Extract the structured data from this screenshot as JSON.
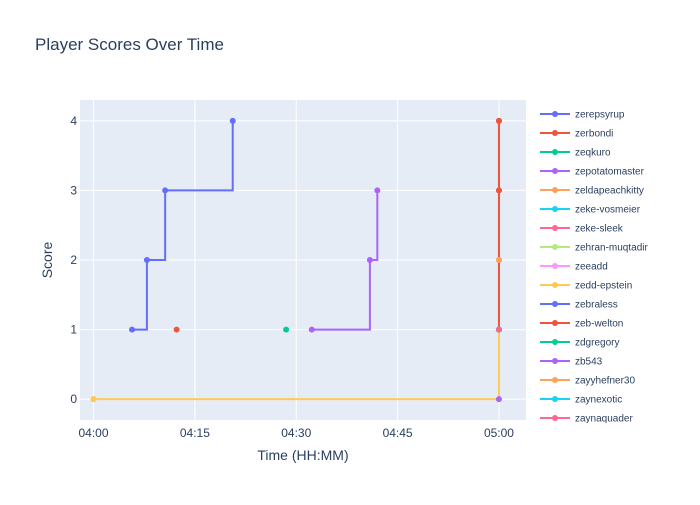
{
  "chart_data": {
    "type": "line",
    "title": "Player Scores Over Time",
    "xlabel": "Time (HH:MM)",
    "ylabel": "Score",
    "line_shape": "step",
    "x_unit": "minutes since 04:00 (clock time HH:MM)",
    "xlim": [
      -2,
      64
    ],
    "ylim": [
      -0.3,
      4.3
    ],
    "x_ticks": [
      {
        "value": 0,
        "label": "04:00"
      },
      {
        "value": 15,
        "label": "04:15"
      },
      {
        "value": 30,
        "label": "04:30"
      },
      {
        "value": 45,
        "label": "04:45"
      },
      {
        "value": 60,
        "label": "05:00"
      }
    ],
    "y_ticks": [
      0,
      1,
      2,
      3,
      4
    ],
    "grid": true,
    "legend_position": "right",
    "background": "#e5ecf6",
    "series": [
      {
        "name": "zerepsyrup",
        "color": "#636efa",
        "points": [
          [
            5.7,
            1
          ],
          [
            7.9,
            2
          ],
          [
            10.6,
            3
          ],
          [
            20.6,
            4
          ]
        ]
      },
      {
        "name": "zerbondi",
        "color": "#ef553b",
        "points": [
          [
            12.3,
            1
          ]
        ]
      },
      {
        "name": "zeqkuro",
        "color": "#00cc96",
        "points": [
          [
            28.5,
            1
          ]
        ]
      },
      {
        "name": "zepotatomaster",
        "color": "#ab63fa",
        "points": [
          [
            32.3,
            1
          ],
          [
            40.9,
            2
          ],
          [
            42.0,
            3
          ]
        ]
      },
      {
        "name": "zeldapeachkitty",
        "color": "#ffa15a",
        "points": [
          [
            0,
            0
          ]
        ]
      },
      {
        "name": "zeke-vosmeier",
        "color": "#19d3f3",
        "points": [
          [
            60,
            1
          ]
        ]
      },
      {
        "name": "zeke-sleek",
        "color": "#ff6692",
        "points": [
          [
            60,
            1
          ]
        ]
      },
      {
        "name": "zehran-muqtadir",
        "color": "#b6e880",
        "points": [
          [
            60,
            2
          ]
        ]
      },
      {
        "name": "zeeadd",
        "color": "#ff97ff",
        "points": [
          [
            60,
            2
          ]
        ]
      },
      {
        "name": "zedd-epstein",
        "color": "#fecb52",
        "points": [
          [
            0,
            0
          ],
          [
            60,
            2
          ]
        ]
      },
      {
        "name": "zebraless",
        "color": "#636efa",
        "points": [
          [
            60,
            1
          ],
          [
            60,
            3
          ],
          [
            60,
            4
          ]
        ]
      },
      {
        "name": "zeb-welton",
        "color": "#ef553b",
        "points": [
          [
            60,
            1
          ],
          [
            60,
            3
          ],
          [
            60,
            4
          ]
        ]
      },
      {
        "name": "zdgregory",
        "color": "#00cc96",
        "points": [
          [
            60,
            1
          ]
        ]
      },
      {
        "name": "zb543",
        "color": "#ab63fa",
        "points": [
          [
            60,
            0
          ]
        ]
      },
      {
        "name": "zayyhefner30",
        "color": "#ffa15a",
        "points": [
          [
            60,
            2
          ]
        ]
      },
      {
        "name": "zaynexotic",
        "color": "#19d3f3",
        "points": [
          [
            60,
            1
          ]
        ]
      },
      {
        "name": "zaynaquader",
        "color": "#ff6692",
        "points": [
          [
            60,
            1
          ]
        ]
      }
    ]
  }
}
